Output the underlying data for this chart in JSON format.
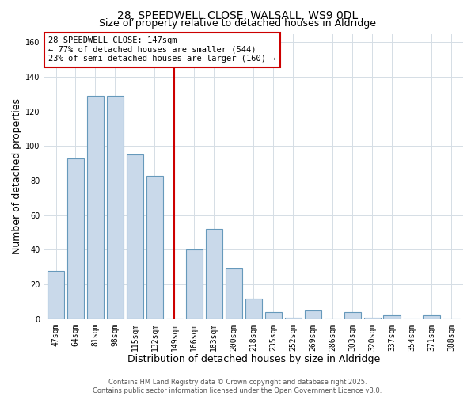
{
  "title": "28, SPEEDWELL CLOSE, WALSALL, WS9 0DL",
  "subtitle": "Size of property relative to detached houses in Aldridge",
  "xlabel": "Distribution of detached houses by size in Aldridge",
  "ylabel": "Number of detached properties",
  "bar_labels": [
    "47sqm",
    "64sqm",
    "81sqm",
    "98sqm",
    "115sqm",
    "132sqm",
    "149sqm",
    "166sqm",
    "183sqm",
    "200sqm",
    "218sqm",
    "235sqm",
    "252sqm",
    "269sqm",
    "286sqm",
    "303sqm",
    "320sqm",
    "337sqm",
    "354sqm",
    "371sqm",
    "388sqm"
  ],
  "bar_values": [
    28,
    93,
    129,
    129,
    95,
    83,
    0,
    40,
    52,
    29,
    12,
    4,
    1,
    5,
    0,
    4,
    1,
    2,
    0,
    2,
    0
  ],
  "bar_color": "#c9d9ea",
  "bar_edge_color": "#6699bb",
  "vline_x_index": 6,
  "vline_color": "#cc0000",
  "annotation_text": "28 SPEEDWELL CLOSE: 147sqm\n← 77% of detached houses are smaller (544)\n23% of semi-detached houses are larger (160) →",
  "annotation_box_color": "#ffffff",
  "annotation_box_edge_color": "#cc0000",
  "ylim": [
    0,
    165
  ],
  "yticks": [
    0,
    20,
    40,
    60,
    80,
    100,
    120,
    140,
    160
  ],
  "grid_color": "#d5dde5",
  "background_color": "#ffffff",
  "footer_line1": "Contains HM Land Registry data © Crown copyright and database right 2025.",
  "footer_line2": "Contains public sector information licensed under the Open Government Licence v3.0.",
  "title_fontsize": 10,
  "subtitle_fontsize": 9,
  "axis_label_fontsize": 9,
  "tick_fontsize": 7,
  "annotation_fontsize": 7.5,
  "footer_fontsize": 6
}
